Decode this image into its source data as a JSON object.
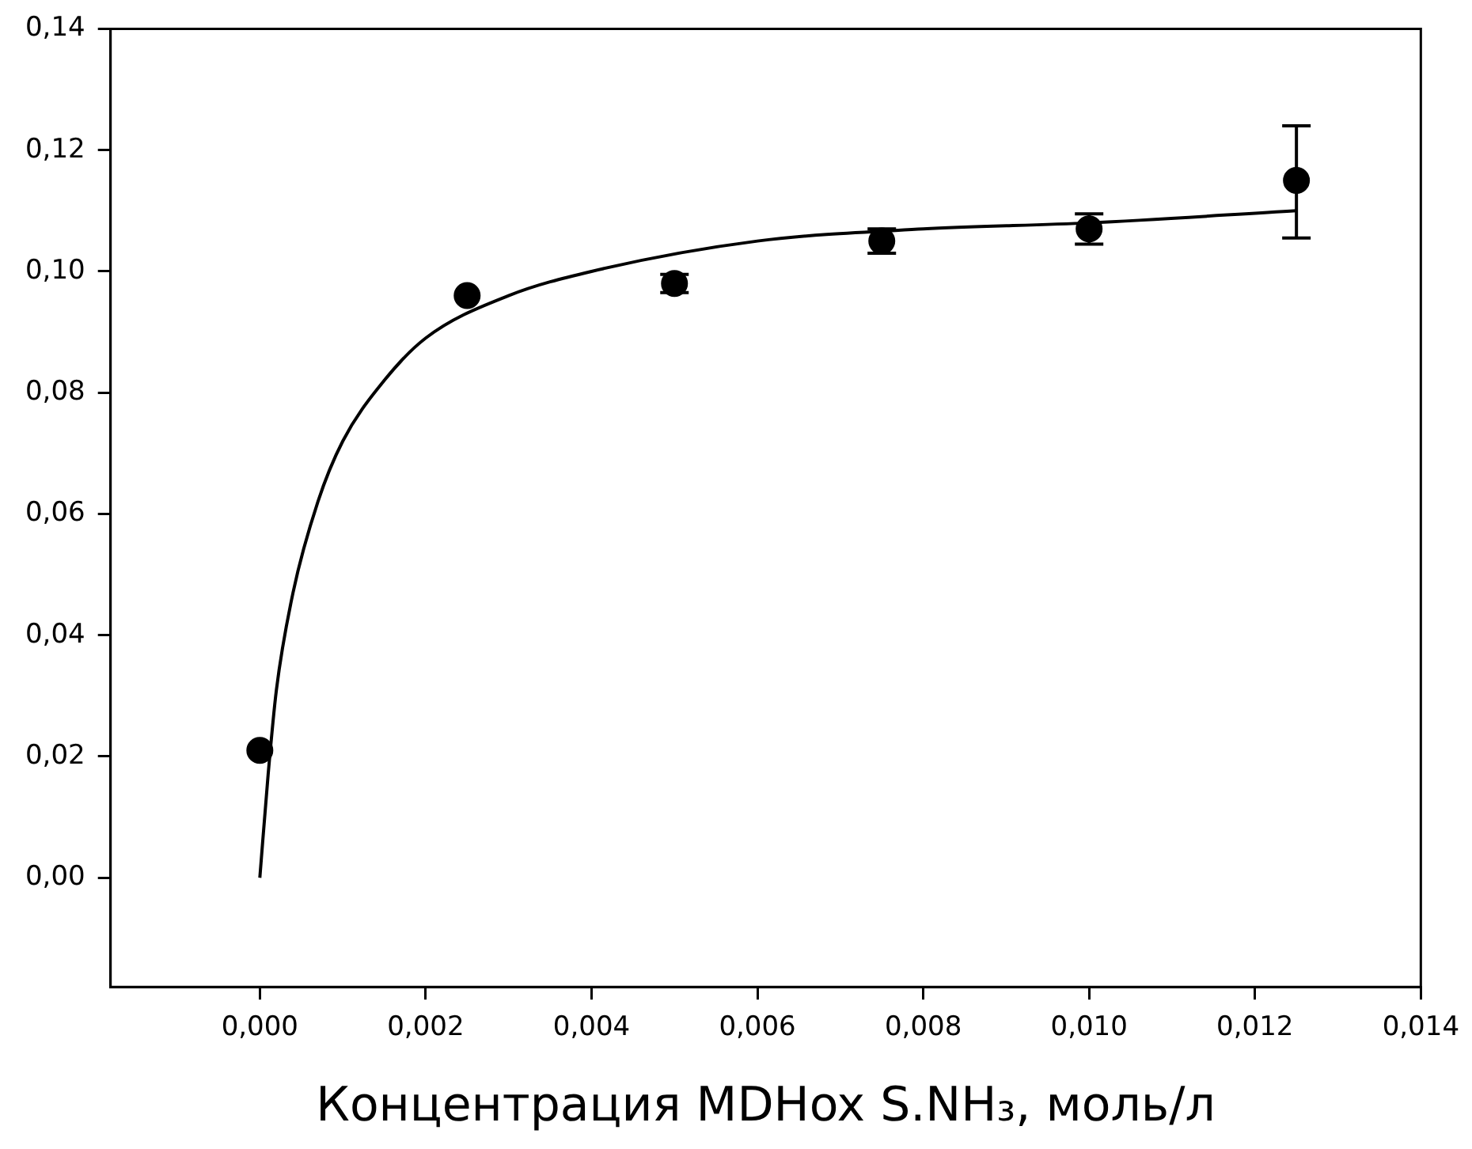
{
  "chart_data": {
    "type": "scatter",
    "xlabel": "Концентрация MDHox S.NH₃, моль/л",
    "xlim": [
      -0.0018,
      0.014
    ],
    "ylim": [
      -0.018,
      0.14
    ],
    "xticks": [
      {
        "value": 0,
        "label": "0,000"
      },
      {
        "value": 0.002,
        "label": "0,002"
      },
      {
        "value": 0.004,
        "label": "0,004"
      },
      {
        "value": 0.006,
        "label": "0,006"
      },
      {
        "value": 0.008,
        "label": "0,008"
      },
      {
        "value": 0.01,
        "label": "0,010"
      },
      {
        "value": 0.012,
        "label": "0,012"
      },
      {
        "value": 0.014,
        "label": "0,014"
      }
    ],
    "yticks": [
      {
        "value": 0,
        "label": "0,00"
      },
      {
        "value": 0.02,
        "label": "0,02"
      },
      {
        "value": 0.04,
        "label": "0,04"
      },
      {
        "value": 0.06,
        "label": "0,06"
      },
      {
        "value": 0.08,
        "label": "0,08"
      },
      {
        "value": 0.1,
        "label": "0,10"
      },
      {
        "value": 0.12,
        "label": "0,12"
      },
      {
        "value": 0.14,
        "label": "0,14"
      }
    ],
    "grid": false,
    "legend": false,
    "marker": "circle",
    "series": [
      {
        "color": "#000000",
        "x": [
          0,
          0.0025,
          0.005,
          0.0075,
          0.01,
          0.0125
        ],
        "values": [
          0.021,
          0.096,
          0.098,
          0.105,
          0.107,
          0.115
        ],
        "errors": [
          null,
          null,
          0.0015,
          0.002,
          0.0025,
          [
            0.1055,
            0.124
          ]
        ]
      },
      {
        "type": "line",
        "color": "#000000",
        "marker": "none",
        "x": [
          0,
          0.0001,
          0.0002,
          0.0004,
          0.0007,
          0.001,
          0.0015,
          0.002,
          0.003,
          0.004,
          0.006,
          0.008,
          0.01,
          0.0125
        ],
        "values": [
          0,
          0.017,
          0.031,
          0.047,
          0.062,
          0.072,
          0.082,
          0.089,
          0.096,
          0.1,
          0.105,
          0.107,
          0.108,
          0.11
        ]
      }
    ]
  }
}
